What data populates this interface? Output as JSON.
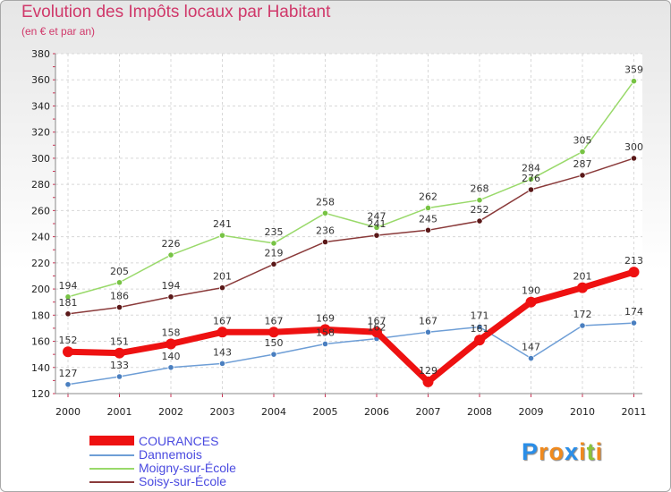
{
  "chart_data": {
    "type": "line",
    "title": "Evolution des Impôts locaux par Habitant",
    "subtitle": "(en € et par an)",
    "xlabel": "",
    "ylabel": "",
    "x": [
      "2000",
      "2001",
      "2002",
      "2003",
      "2004",
      "2005",
      "2006",
      "2007",
      "2008",
      "2009",
      "2010",
      "2011"
    ],
    "ylim": [
      120,
      380
    ],
    "yticks": [
      120,
      140,
      160,
      180,
      200,
      220,
      240,
      260,
      280,
      300,
      320,
      340,
      360,
      380
    ],
    "grid": true,
    "legend_position": "bottom-left",
    "series": [
      {
        "name": "Moigny-sur-École",
        "color": "#99d96a",
        "marker": "#77c344",
        "values": [
          194,
          205,
          226,
          241,
          235,
          258,
          247,
          262,
          268,
          284,
          305,
          359
        ]
      },
      {
        "name": "Soisy-sur-École",
        "color": "#8a3a3a",
        "marker": "#5a1818",
        "values": [
          181,
          186,
          194,
          201,
          219,
          236,
          241,
          245,
          252,
          276,
          287,
          300
        ]
      },
      {
        "name": "Dannemois",
        "color": "#6e9ed6",
        "marker": "#4a7fc0",
        "values": [
          127,
          133,
          140,
          143,
          150,
          158,
          162,
          167,
          171,
          147,
          172,
          174
        ]
      },
      {
        "name": "COURANCES",
        "color": "#ee1111",
        "marker": "#ee1111",
        "values": [
          152,
          151,
          158,
          167,
          167,
          169,
          167,
          129,
          161,
          190,
          201,
          213
        ]
      }
    ]
  },
  "legend": {
    "items": [
      {
        "label": "COURANCES",
        "color": "#ee1111"
      },
      {
        "label": "Dannemois",
        "color": "#6e9ed6"
      },
      {
        "label": "Moigny-sur-École",
        "color": "#99d96a"
      },
      {
        "label": "Soisy-sur-École",
        "color": "#8a3a3a"
      }
    ],
    "text_color": "#4a4ae0"
  },
  "logo": {
    "letters": [
      "P",
      "r",
      "o",
      "x",
      "i",
      "t",
      "i"
    ],
    "colors": [
      "#2a8ee8",
      "#f08a1e",
      "#f08a1e",
      "#2a8ee8",
      "#f08a1e",
      "#8ac43a",
      "#f08a1e"
    ]
  }
}
